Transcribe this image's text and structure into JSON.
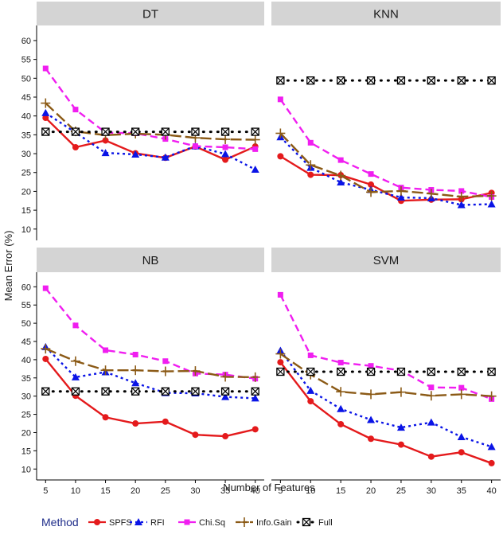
{
  "chart_data": {
    "type": "line",
    "xlabel": "Number of Features",
    "ylabel": "Mean Error (%)",
    "x": [
      5,
      10,
      15,
      20,
      25,
      30,
      35,
      40
    ],
    "x_ticks": [
      "5",
      "10",
      "15",
      "20",
      "25",
      "30",
      "35",
      "40"
    ],
    "y_ticks": [
      "10",
      "15",
      "20",
      "25",
      "30",
      "35",
      "40",
      "45",
      "50",
      "55",
      "60"
    ],
    "ylim": [
      7,
      64
    ],
    "xlim": [
      3.5,
      41.5
    ],
    "legend": {
      "title": "Method",
      "position": "bottom",
      "entries": [
        "SPFS",
        "RFI",
        "Chi.Sq",
        "Info.Gain",
        "Full"
      ]
    },
    "series_styles": [
      {
        "name": "SPFS",
        "color": "#e41a1c",
        "marker": "circle",
        "dash": "solid"
      },
      {
        "name": "RFI",
        "color": "#0a14e6",
        "marker": "triangle",
        "dash": "dotted"
      },
      {
        "name": "Chi.Sq",
        "color": "#f01ef0",
        "marker": "square",
        "dash": "dashed"
      },
      {
        "name": "Info.Gain",
        "color": "#8b5a16",
        "marker": "plus",
        "dash": "longdash"
      },
      {
        "name": "Full",
        "color": "#000000",
        "marker": "boxx",
        "dash": "dotted-heavy"
      }
    ],
    "panels": [
      {
        "title": "DT",
        "series": [
          {
            "name": "SPFS",
            "values": [
              39.5,
              31.7,
              33.5,
              30.1,
              28.9,
              31.9,
              28.4,
              31.9
            ]
          },
          {
            "name": "RFI",
            "values": [
              40.8,
              35.6,
              30.2,
              29.8,
              29.0,
              32.0,
              29.9,
              25.8
            ]
          },
          {
            "name": "Chi.Sq",
            "values": [
              52.6,
              41.7,
              35.6,
              35.4,
              33.9,
              32.0,
              31.7,
              31.2
            ]
          },
          {
            "name": "Info.Gain",
            "values": [
              43.4,
              35.9,
              34.9,
              35.3,
              35.0,
              34.2,
              33.8,
              33.7
            ]
          },
          {
            "name": "Full",
            "values": [
              35.8,
              35.8,
              35.8,
              35.8,
              35.8,
              35.8,
              35.8,
              35.8
            ]
          }
        ]
      },
      {
        "title": "KNN",
        "series": [
          {
            "name": "SPFS",
            "values": [
              29.3,
              24.4,
              24.3,
              21.8,
              17.5,
              17.8,
              17.9,
              19.6
            ]
          },
          {
            "name": "RFI",
            "values": [
              34.4,
              26.3,
              22.4,
              20.4,
              18.4,
              18.2,
              16.4,
              16.6
            ]
          },
          {
            "name": "Chi.Sq",
            "values": [
              44.4,
              32.9,
              28.3,
              24.6,
              21.0,
              20.4,
              20.1,
              18.5
            ]
          },
          {
            "name": "Info.Gain",
            "values": [
              35.4,
              27.0,
              24.2,
              19.8,
              20.1,
              19.4,
              18.6,
              18.8
            ]
          },
          {
            "name": "Full",
            "values": [
              49.4,
              49.4,
              49.4,
              49.4,
              49.4,
              49.4,
              49.4,
              49.4
            ]
          }
        ]
      },
      {
        "title": "NB",
        "series": [
          {
            "name": "SPFS",
            "values": [
              40.2,
              30.1,
              24.2,
              22.5,
              23.0,
              19.4,
              19.0,
              20.9
            ]
          },
          {
            "name": "RFI",
            "values": [
              43.5,
              35.2,
              36.6,
              33.6,
              30.9,
              30.8,
              29.8,
              29.4
            ]
          },
          {
            "name": "Chi.Sq",
            "values": [
              59.6,
              49.4,
              42.6,
              41.4,
              39.6,
              36.2,
              35.9,
              34.8
            ]
          },
          {
            "name": "Info.Gain",
            "values": [
              43.0,
              39.6,
              37.1,
              37.1,
              36.8,
              36.9,
              35.3,
              35.2
            ]
          },
          {
            "name": "Full",
            "values": [
              31.3,
              31.3,
              31.3,
              31.3,
              31.3,
              31.3,
              31.3,
              31.3
            ]
          }
        ]
      },
      {
        "title": "SVM",
        "series": [
          {
            "name": "SPFS",
            "values": [
              39.3,
              28.6,
              22.3,
              18.3,
              16.7,
              13.4,
              14.6,
              11.6
            ]
          },
          {
            "name": "RFI",
            "values": [
              42.5,
              31.5,
              26.5,
              23.5,
              21.4,
              22.8,
              18.8,
              16.1
            ]
          },
          {
            "name": "Chi.Sq",
            "values": [
              57.8,
              41.2,
              39.2,
              38.3,
              37.0,
              32.4,
              32.3,
              29.2
            ]
          },
          {
            "name": "Info.Gain",
            "values": [
              41.6,
              35.9,
              31.2,
              30.5,
              31.1,
              30.1,
              30.5,
              30.0
            ]
          },
          {
            "name": "Full",
            "values": [
              36.7,
              36.7,
              36.7,
              36.7,
              36.7,
              36.7,
              36.7,
              36.7
            ]
          }
        ]
      }
    ]
  }
}
